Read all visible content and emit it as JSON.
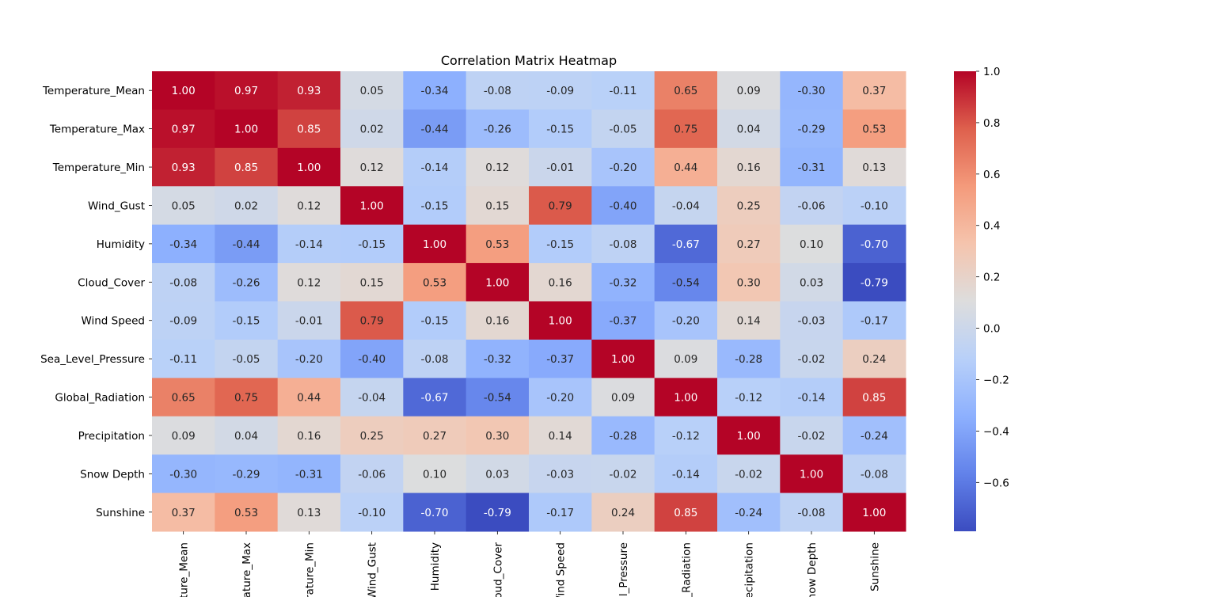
{
  "chart_data": {
    "type": "heatmap",
    "title": "Correlation Matrix Heatmap",
    "xlabel": "",
    "ylabel": "",
    "colormap": "coolwarm",
    "vmin": -0.79,
    "vmax": 1.0,
    "row_labels": [
      "Temperature_Mean",
      "Temperature_Max",
      "Temperature_Min",
      "Wind_Gust",
      "Humidity",
      "Cloud_Cover",
      "Wind Speed",
      "Sea_Level_Pressure",
      "Global_Radiation",
      "Precipitation",
      "Snow Depth",
      "Sunshine"
    ],
    "column_labels_visible": [
      "ature_Mean",
      "erature_Max",
      "erature_Min",
      "Wind_Gust",
      "Humidity",
      "loud_Cover",
      "Wind Speed",
      "l_Pressure",
      "_Radiation",
      "ecipitation",
      "now Depth",
      "Sunshine"
    ],
    "values": [
      [
        1.0,
        0.97,
        0.93,
        0.05,
        -0.34,
        -0.08,
        -0.09,
        -0.11,
        0.65,
        0.09,
        -0.3,
        0.37
      ],
      [
        0.97,
        1.0,
        0.85,
        0.02,
        -0.44,
        -0.26,
        -0.15,
        -0.05,
        0.75,
        0.04,
        -0.29,
        0.53
      ],
      [
        0.93,
        0.85,
        1.0,
        0.12,
        -0.14,
        0.12,
        -0.01,
        -0.2,
        0.44,
        0.16,
        -0.31,
        0.13
      ],
      [
        0.05,
        0.02,
        0.12,
        1.0,
        -0.15,
        0.15,
        0.79,
        -0.4,
        -0.04,
        0.25,
        -0.06,
        -0.1
      ],
      [
        -0.34,
        -0.44,
        -0.14,
        -0.15,
        1.0,
        0.53,
        -0.15,
        -0.08,
        -0.67,
        0.27,
        0.1,
        -0.7
      ],
      [
        -0.08,
        -0.26,
        0.12,
        0.15,
        0.53,
        1.0,
        0.16,
        -0.32,
        -0.54,
        0.3,
        0.03,
        -0.79
      ],
      [
        -0.09,
        -0.15,
        -0.01,
        0.79,
        -0.15,
        0.16,
        1.0,
        -0.37,
        -0.2,
        0.14,
        -0.03,
        -0.17
      ],
      [
        -0.11,
        -0.05,
        -0.2,
        -0.4,
        -0.08,
        -0.32,
        -0.37,
        1.0,
        0.09,
        -0.28,
        -0.02,
        0.24
      ],
      [
        0.65,
        0.75,
        0.44,
        -0.04,
        -0.67,
        -0.54,
        -0.2,
        0.09,
        1.0,
        -0.12,
        -0.14,
        0.85
      ],
      [
        0.09,
        0.04,
        0.16,
        0.25,
        0.27,
        0.3,
        0.14,
        -0.28,
        -0.12,
        1.0,
        -0.02,
        -0.24
      ],
      [
        -0.3,
        -0.29,
        -0.31,
        -0.06,
        0.1,
        0.03,
        -0.03,
        -0.02,
        -0.14,
        -0.02,
        1.0,
        -0.08
      ],
      [
        0.37,
        0.53,
        0.13,
        -0.1,
        -0.7,
        -0.79,
        -0.17,
        0.24,
        0.85,
        -0.24,
        -0.08,
        1.0
      ]
    ],
    "colorbar_ticks": [
      1.0,
      0.8,
      0.6,
      0.4,
      0.2,
      0.0,
      -0.2,
      -0.4,
      -0.6
    ],
    "colorbar_tick_labels": [
      "1.0",
      "0.8",
      "0.6",
      "0.4",
      "0.2",
      "0.0",
      "−0.2",
      "−0.4",
      "−0.6"
    ],
    "annotation_format": "0.00",
    "grid": false
  }
}
